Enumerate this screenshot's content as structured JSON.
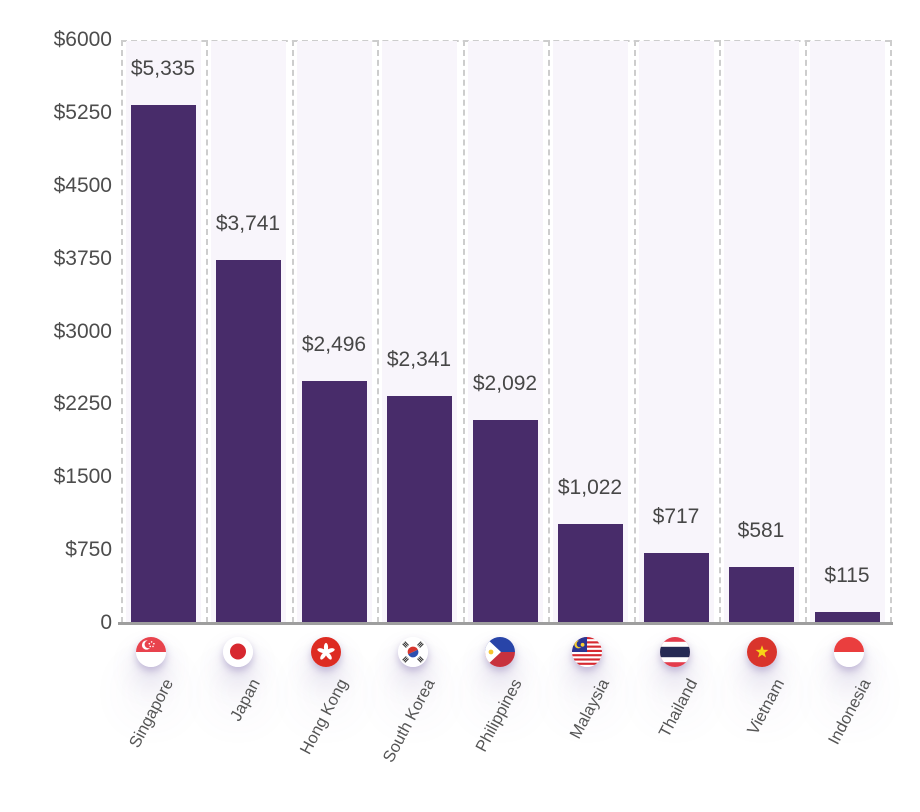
{
  "chart_data": {
    "type": "bar",
    "title": "",
    "xlabel": "",
    "ylabel": "",
    "categories": [
      "Singapore",
      "Japan",
      "Hong Kong",
      "South Korea",
      "Philippines",
      "Malaysia",
      "Thailand",
      "Vietnam",
      "Indonesia"
    ],
    "values": [
      5335,
      3741,
      2496,
      2341,
      2092,
      1022,
      717,
      581,
      115
    ],
    "value_labels": [
      "$5,335",
      "$3,741",
      "$2,496",
      "$2,341",
      "$2,092",
      "$1,022",
      "$717",
      "$581",
      "$115"
    ],
    "y_ticks": [
      "$6000",
      "$5250",
      "$4500",
      "$3750",
      "$3000",
      "$2250",
      "$1500",
      "$750",
      "0"
    ],
    "ylim": [
      0,
      6000
    ],
    "y_tick_step": 750,
    "grid": "vertical dashed column guides with dashed top border, no horizontal gridlines",
    "legend": "none",
    "flag_icons": [
      "singapore-flag-icon",
      "japan-flag-icon",
      "hong-kong-flag-icon",
      "south-korea-flag-icon",
      "philippines-flag-icon",
      "malaysia-flag-icon",
      "thailand-flag-icon",
      "vietnam-flag-icon",
      "indonesia-flag-icon"
    ]
  },
  "colors": {
    "bar": "#482c6a",
    "column_bg": "#f8f5fb",
    "dashed_guide": "#cdcdcd",
    "axis_line": "#9e9e9e",
    "value_label_text": "#474747",
    "tick_text": "#4d4d4d",
    "category_text": "#555555"
  }
}
